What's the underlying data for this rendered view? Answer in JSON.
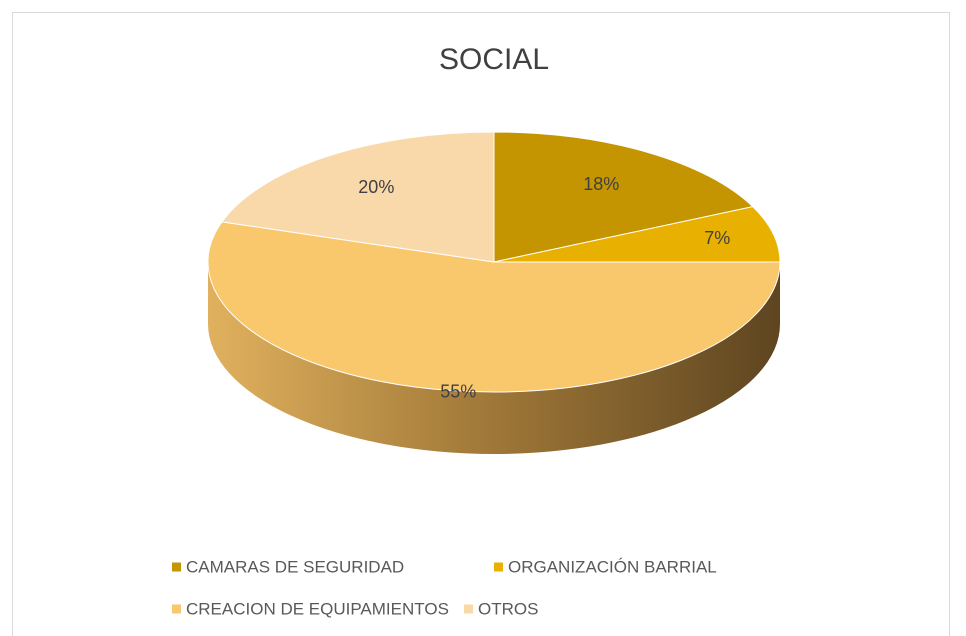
{
  "chart_data": {
    "type": "pie",
    "title": "SOCIAL",
    "categories": [
      "CAMARAS DE SEGURIDAD",
      "ORGANIZACIÓN BARRIAL",
      "CREACION DE EQUIPAMIENTOS",
      "OTROS"
    ],
    "values": [
      18,
      7,
      55,
      20
    ],
    "value_labels": [
      "18%",
      "7%",
      "55%",
      "20%"
    ],
    "colors": [
      "#c49500",
      "#e8b000",
      "#f9c76c",
      "#f9d9a9"
    ],
    "legend": "bottom"
  }
}
